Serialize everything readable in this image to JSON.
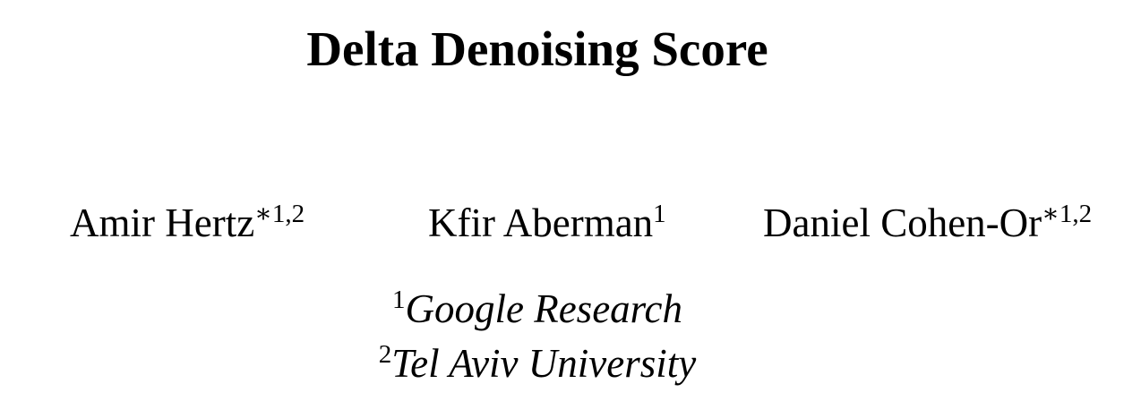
{
  "paper": {
    "title": "Delta Denoising Score",
    "authors": [
      {
        "name": "Amir Hertz",
        "marks": "∗1,2"
      },
      {
        "name": "Kfir Aberman",
        "marks": "1"
      },
      {
        "name": "Daniel Cohen-Or",
        "marks": "∗1,2"
      }
    ],
    "affiliations": [
      {
        "mark": "1",
        "name": "Google Research"
      },
      {
        "mark": "2",
        "name": "Tel Aviv University"
      }
    ]
  }
}
